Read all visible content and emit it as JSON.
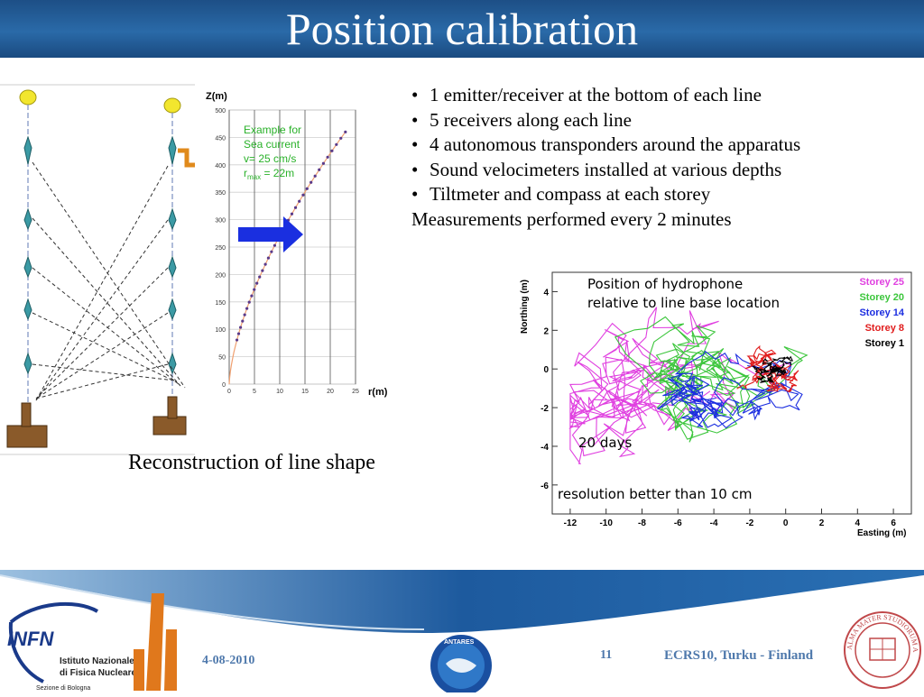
{
  "slide": {
    "title": "Position calibration",
    "bullets": [
      "1 emitter/receiver at the bottom of each line",
      "5 receivers along each line",
      "4 autonomous transponders around the apparatus",
      "Sound velocimeters installed at various depths",
      "Tiltmeter and compass at each storey"
    ],
    "bullet_tail": "Measurements performed every 2 minutes",
    "caption_left": "Reconstruction of line shape"
  },
  "z_plot": {
    "ylabel": "Z(m)",
    "xlabel": "r(m)",
    "yticks": [
      "0",
      "50",
      "100",
      "150",
      "200",
      "250",
      "300",
      "350",
      "400",
      "450",
      "500"
    ],
    "xticks": [
      "0",
      "5",
      "10",
      "15",
      "20",
      "25"
    ],
    "legend_line1": "Example for",
    "legend_line2": "Sea current",
    "legend_line3": "v= 25 cm/s",
    "legend_line4_prefix": "r",
    "legend_line4_sub": "max",
    "legend_line4_suffix": " = 22m"
  },
  "scatter_plot": {
    "ylabel": "Northing (m)",
    "xlabel": "Easting (m)",
    "yticks": [
      "4",
      "2",
      "0",
      "-2",
      "-4",
      "-6"
    ],
    "xticks": [
      "-12",
      "-10",
      "-8",
      "-6",
      "-4",
      "-2",
      "0",
      "2",
      "4",
      "6"
    ],
    "note_line1": "Position of hydrophone",
    "note_line2": "relative to line base location",
    "days": "20 days",
    "resolution": "resolution better than 10 cm",
    "legend": [
      {
        "label": "Storey 25",
        "color": "#e040e0"
      },
      {
        "label": "Storey 20",
        "color": "#3cc63c"
      },
      {
        "label": "Storey 14",
        "color": "#1c2ee0"
      },
      {
        "label": "Storey 8",
        "color": "#e01c1c"
      },
      {
        "label": "Storey 1",
        "color": "#000000"
      }
    ]
  },
  "footer": {
    "date": "4-08-2010",
    "page": "11",
    "conference": "ECRS10, Turku - Finland",
    "infn_logo": "INFN",
    "infn_line1": "Istituto Nazionale",
    "infn_line2": "di Fisica Nucleare",
    "infn_line3": "Sezione di Bologna",
    "seal_text": "ALMA MATER STUDIORUM A.D. 1088",
    "antares_text": "ANTARES"
  },
  "colors": {
    "title_bar": "#1d4f86",
    "footer_text": "#4f79ac",
    "arrow_blue": "#1a2fe0",
    "legend_green": "#29b129"
  }
}
